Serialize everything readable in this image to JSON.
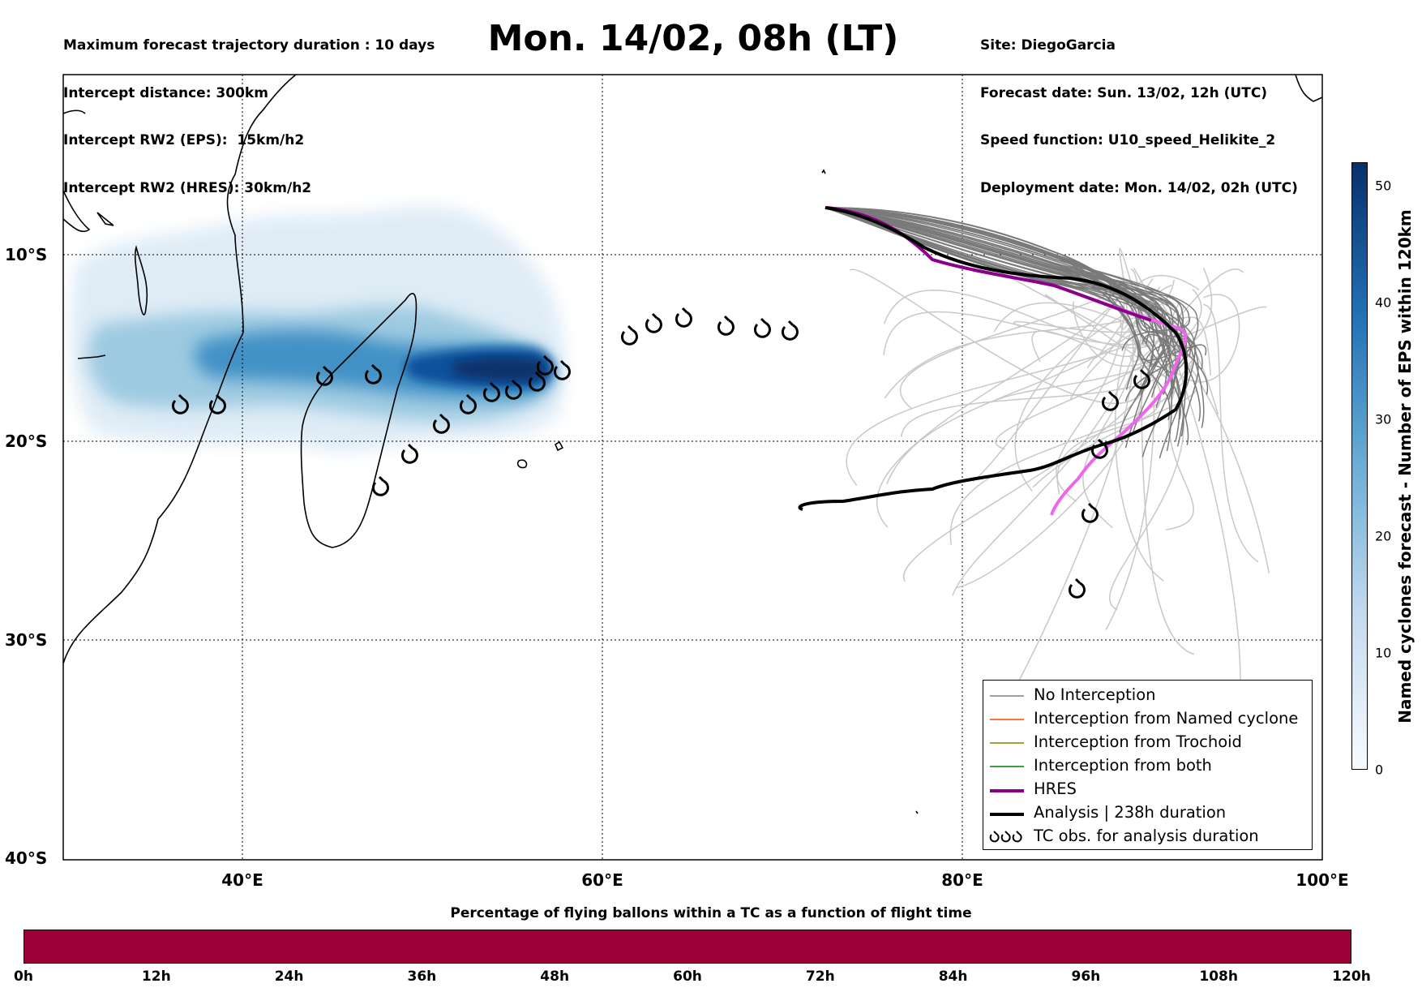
{
  "header_left": [
    "Maximum forecast trajectory duration : 10 days",
    "Intercept distance: 300km",
    "Intercept RW2 (EPS):  15km/h2",
    "Intercept RW2 (HRES): 30km/h2"
  ],
  "header_right": [
    "Site: DiegoGarcia",
    "Forecast date: Sun. 13/02, 12h (UTC)",
    "Speed function: U10_speed_Helikite_2",
    "Deployment date: Mon. 14/02, 02h (UTC)"
  ],
  "title": "Mon. 14/02, 08h (LT)",
  "map": {
    "lat_labels": [
      "10°S",
      "20°S",
      "30°S",
      "40°S"
    ],
    "lon_labels": [
      "40°E",
      "60°E",
      "80°E",
      "100°E"
    ],
    "extent": {
      "lon_min": 30,
      "lon_max": 100,
      "lat_min": -40,
      "lat_max": 0
    },
    "colors": {
      "no_interception": "#808080",
      "named_cyclone": "#ff4500",
      "trochoid": "#808000",
      "both": "#008000",
      "hres": "#8b008b",
      "analysis": "#000000",
      "eps_light": "#c6dbef",
      "eps_dark": "#08306b"
    },
    "tc_obs_icon": "cyclone-icon"
  },
  "legend": {
    "items": [
      {
        "label": "No Interception"
      },
      {
        "label": "Interception from Named cyclone"
      },
      {
        "label": "Interception from Trochoid"
      },
      {
        "label": "Interception from both"
      },
      {
        "label": "HRES"
      },
      {
        "label": "Analysis | 238h duration"
      },
      {
        "label": "TC obs. for analysis duration"
      }
    ]
  },
  "side_colorbar": {
    "title": "Named cyclones forecast - Number of EPS within 120km",
    "ticks": [
      "0",
      "10",
      "20",
      "30",
      "40",
      "50"
    ],
    "range": [
      0,
      52
    ]
  },
  "bottom_colorbar": {
    "title": "Percentage of flying ballons within a TC as a function of flight time",
    "ticks": [
      "0h",
      "12h",
      "24h",
      "36h",
      "48h",
      "60h",
      "72h",
      "84h",
      "96h",
      "108h",
      "120h"
    ],
    "color": "#9e003a"
  }
}
